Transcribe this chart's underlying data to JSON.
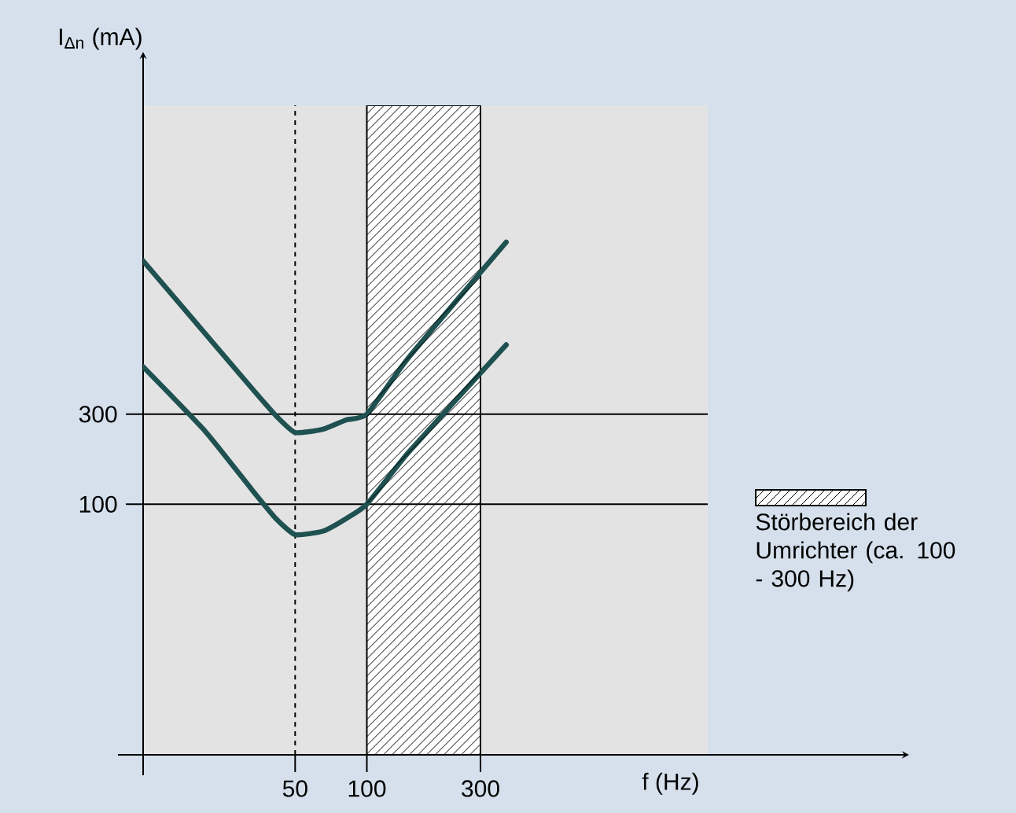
{
  "chart_data": {
    "type": "line",
    "xlabel": "f (Hz)",
    "ylabel": "I$_{Δn}$ (mA)",
    "log": "xy",
    "xlim": [
      11.5,
      2700
    ],
    "ylim": [
      4.7,
      13000
    ],
    "xticks": [
      50,
      100,
      300
    ],
    "yticks": [
      100,
      300
    ],
    "grid": false,
    "annotations": [
      "Störbereich der Umrichter (ca. 100 - 300 Hz)"
    ],
    "x": [
      11.5,
      21,
      33,
      41.5,
      50,
      65.5,
      82,
      100,
      150,
      385
    ],
    "series": [
      {
        "color": "#1f5151",
        "values": [
          1950,
          800,
          410,
          295,
          240,
          250,
          280,
          300,
          600,
          2450
        ]
      },
      {
        "color": "#1f5151",
        "values": [
          535,
          243,
          119,
          84,
          69,
          72,
          84,
          100,
          189,
          700
        ]
      }
    ],
    "ref_lines": [
      {
        "axis": "y",
        "value": 300
      },
      {
        "axis": "y",
        "value": 100
      },
      {
        "axis": "x",
        "value": 50,
        "line_style": "dashed"
      }
    ],
    "bands": [
      {
        "axis": "x",
        "from": 100,
        "to": 300
      }
    ]
  }
}
